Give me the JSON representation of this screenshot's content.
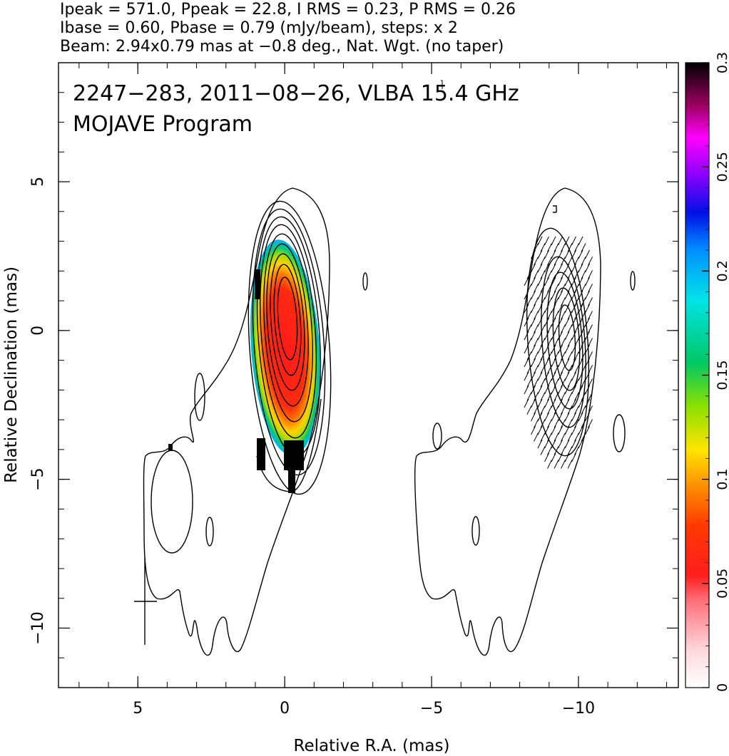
{
  "header": {
    "line1": "Ipeak = 571.0, Ppeak = 22.8, I RMS = 0.23, P RMS = 0.26",
    "line2": "Ibase = 0.60, Pbase = 0.79 (mJy/beam), steps: x 2",
    "line3": "Beam: 2.94x0.79 mas at −0.8 deg., Nat. Wgt. (no taper)"
  },
  "chart_data": {
    "type": "heatmap",
    "title": "2247−283, 2011−08−26, VLBA 15.4 GHz",
    "subtitle": "MOJAVE Program",
    "xlabel": "Relative R.A. (mas)",
    "ylabel": "Relative Declination (mas)",
    "xlim": [
      7.7,
      -13.4
    ],
    "ylim": [
      -12,
      9
    ],
    "xticks": [
      {
        "value": 5,
        "label": "5"
      },
      {
        "value": 0,
        "label": "0"
      },
      {
        "value": -5,
        "label": "−5"
      },
      {
        "value": -10,
        "label": "−10"
      }
    ],
    "yticks": [
      {
        "value": 5,
        "label": "5"
      },
      {
        "value": 0,
        "label": "0"
      },
      {
        "value": -5,
        "label": "−5"
      },
      {
        "value": -10,
        "label": "−10"
      }
    ],
    "colorbar": {
      "range": [
        0,
        0.3
      ],
      "ticks": [
        {
          "value": 0,
          "label": "0"
        },
        {
          "value": 0.05,
          "label": "0.05"
        },
        {
          "value": 0.1,
          "label": "0.1"
        },
        {
          "value": 0.15,
          "label": "0.15"
        },
        {
          "value": 0.2,
          "label": "0.2"
        },
        {
          "value": 0.25,
          "label": "0.25"
        },
        {
          "value": 0.3,
          "label": "0.3"
        }
      ]
    },
    "panels": [
      {
        "name": "total intensity with fractional polarization color",
        "center": [
          0,
          0
        ]
      },
      {
        "name": "polarization vectors",
        "center": [
          -10,
          0
        ]
      }
    ],
    "core": {
      "ra": 0,
      "dec": 0.5
    },
    "contour_levels_mjy": [
      0.6,
      1.2,
      2.4,
      4.8,
      9.6,
      19.2,
      38.4,
      76.8,
      153.6,
      307.2
    ],
    "beam": {
      "major_mas": 2.94,
      "minor_mas": 0.79,
      "pa_deg": -0.8,
      "center": [
        4.8,
        -9.1
      ]
    },
    "colors": {
      "frame": "#000000",
      "contour": "#000000"
    }
  }
}
